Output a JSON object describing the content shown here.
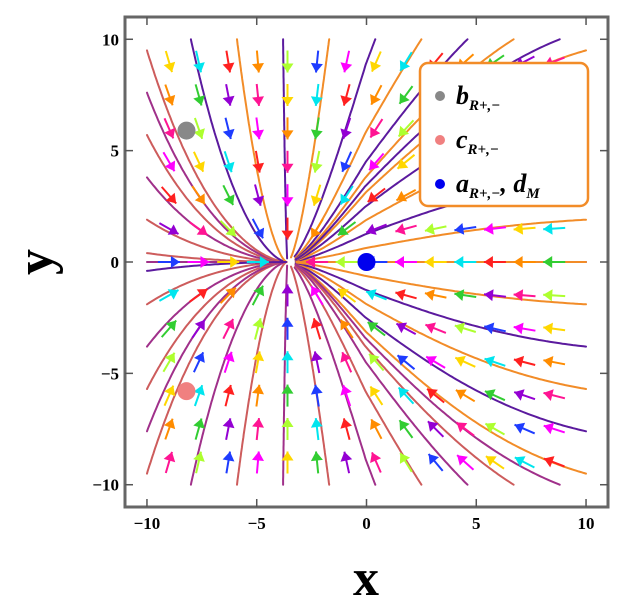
{
  "chart_data": {
    "type": "streamplot",
    "title": "",
    "xlabel": "x",
    "ylabel": "y",
    "xlim": [
      -11,
      11
    ],
    "ylim": [
      -11,
      11
    ],
    "xticks": [
      -10,
      -5,
      0,
      5,
      10
    ],
    "yticks": [
      -10,
      -5,
      0,
      5,
      10
    ],
    "x_tick_labels": [
      "−10",
      "−5",
      "0",
      "5",
      "10"
    ],
    "y_tick_labels": [
      "−10",
      "−5",
      "0",
      "5",
      "10"
    ],
    "grid": false,
    "legend_position": "top-right",
    "frame_color": "#666666",
    "points": [
      {
        "name": "b",
        "sub": "R+,−",
        "x": -8.2,
        "y": 5.9,
        "color": "#888888"
      },
      {
        "name": "c",
        "sub": "R+,−",
        "x": -8.2,
        "y": -5.8,
        "color": "#f08080"
      },
      {
        "name": "a",
        "sub": "R+,−",
        "name2": "d",
        "sub2": "M",
        "x": 0.0,
        "y": 0.0,
        "color": "#0000ee"
      }
    ],
    "legend": {
      "border_color": "#f28c28",
      "entries": [
        {
          "name": "b",
          "sub": "R+,−",
          "color": "#888888"
        },
        {
          "name": "c",
          "sub": "R+,−",
          "color": "#f08080"
        },
        {
          "name": "a",
          "sub": "R+,−",
          "sep": ", ",
          "name2": "d",
          "sub2": "M",
          "color": "#0000ee"
        }
      ]
    },
    "stream_colors": [
      "#f28c28",
      "#cd5c5c",
      "#5b1a9e",
      "#a0308a"
    ],
    "arrow_colors": [
      "#ff1493",
      "#ff8c00",
      "#ffd700",
      "#adff2f",
      "#32cd32",
      "#00e5ee",
      "#1e3cff",
      "#9400d3",
      "#ff2020",
      "#ff00ff"
    ]
  }
}
